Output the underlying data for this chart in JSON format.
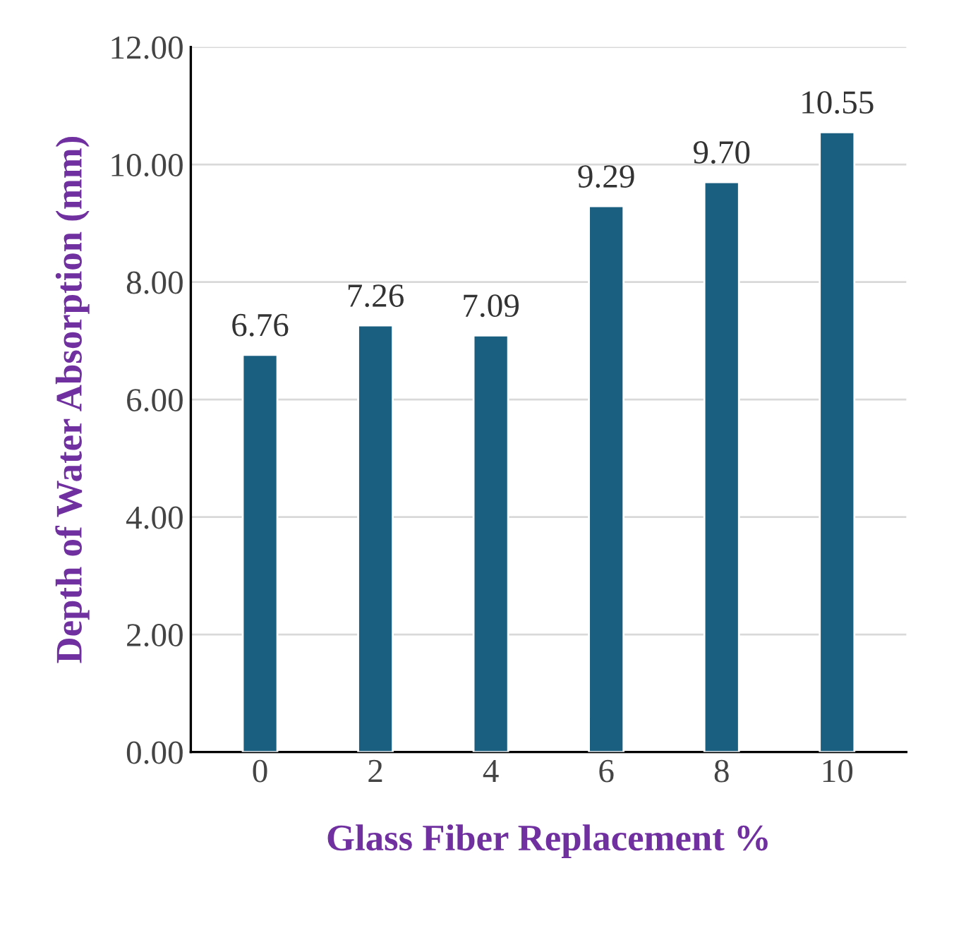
{
  "chart_data": {
    "type": "bar",
    "xlabel": "Glass Fiber Replacement %",
    "ylabel": "Depth of Water Absorption (mm)",
    "categories": [
      "0",
      "2",
      "4",
      "6",
      "8",
      "10"
    ],
    "values": [
      6.76,
      7.26,
      7.09,
      9.29,
      9.7,
      10.55
    ],
    "value_labels": [
      "6.76",
      "7.26",
      "7.09",
      "9.29",
      "9.70",
      "10.55"
    ],
    "color": "#1a5e80",
    "ylim": [
      0,
      12
    ],
    "yticks": [
      {
        "value": 0,
        "label": "0.00"
      },
      {
        "value": 2,
        "label": "2.00"
      },
      {
        "value": 4,
        "label": "4.00"
      },
      {
        "value": 6,
        "label": "6.00"
      },
      {
        "value": 8,
        "label": "8.00"
      },
      {
        "value": 10,
        "label": "10.00"
      },
      {
        "value": 12,
        "label": "12.00"
      }
    ],
    "grid": "y",
    "legend": false
  }
}
